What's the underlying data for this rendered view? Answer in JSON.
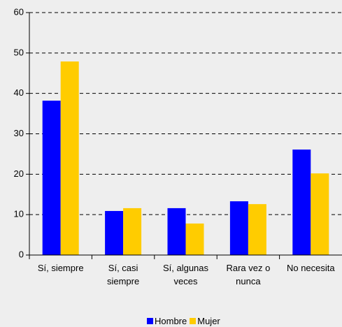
{
  "chart_data": {
    "type": "bar",
    "categories": [
      "Sí, siempre",
      "Sí, casi siempre",
      "Sí, algunas veces",
      "Rara vez o nunca",
      "No necesita"
    ],
    "series": [
      {
        "name": "Hombre",
        "color": "#0000ff",
        "values": [
          38.2,
          10.9,
          11.6,
          13.3,
          26.1
        ]
      },
      {
        "name": "Mujer",
        "color": "#ffcc00",
        "values": [
          47.9,
          11.6,
          7.8,
          12.6,
          20.2
        ]
      }
    ],
    "ylim": [
      0,
      60
    ],
    "yticks": [
      0,
      10,
      20,
      30,
      40,
      50,
      60
    ],
    "grid": true,
    "legend": "bottom"
  }
}
